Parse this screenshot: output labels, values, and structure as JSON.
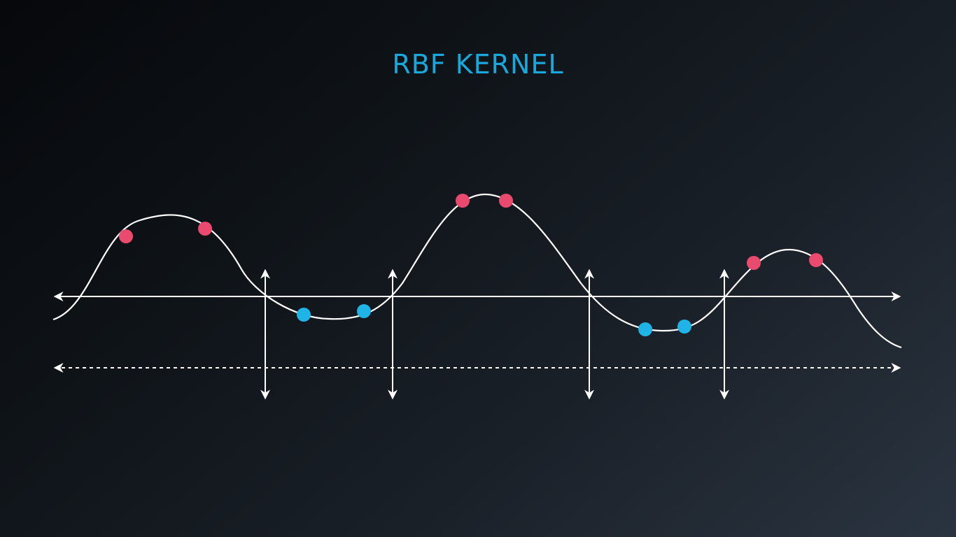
{
  "title": "RBF KERNEL",
  "colors": {
    "title": "#1aa7dc",
    "curve": "#ffffff",
    "axis": "#ffffff",
    "positive_point": "#e94a6e",
    "negative_point": "#1fb3e6"
  },
  "points": {
    "positive_count": 6,
    "negative_count": 4
  }
}
